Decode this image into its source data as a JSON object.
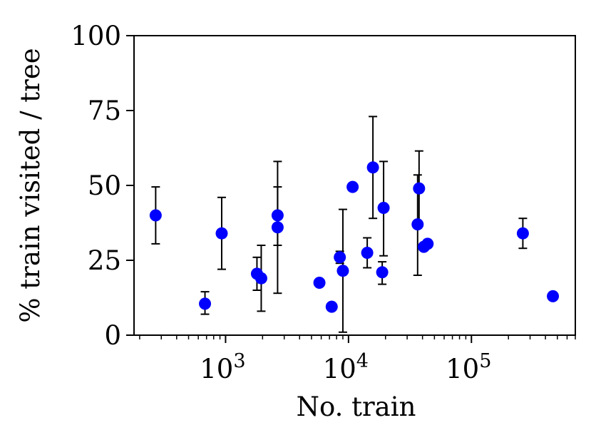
{
  "chart_data": {
    "type": "scatter",
    "title": "",
    "xlabel": "No. train",
    "ylabel": "% train visited / tree",
    "x_scale": "log",
    "xlim": [
      180,
      700000
    ],
    "ylim": [
      0,
      100
    ],
    "y_ticks": [
      0,
      25,
      50,
      75,
      100
    ],
    "y_tick_labels": [
      "0",
      "25",
      "50",
      "75",
      "100"
    ],
    "x_major_ticks": [
      1000,
      10000,
      100000
    ],
    "x_tick_labels": [
      {
        "base": "10",
        "exp": "3"
      },
      {
        "base": "10",
        "exp": "4"
      },
      {
        "base": "10",
        "exp": "5"
      }
    ],
    "marker_color": "#0000ff",
    "errorbar_color": "#000000",
    "points": [
      {
        "x": 270,
        "y": 40,
        "err_low": 30.5,
        "err_high": 49.5
      },
      {
        "x": 680,
        "y": 10.5,
        "err_low": 7,
        "err_high": 14.5
      },
      {
        "x": 930,
        "y": 34,
        "err_low": 22,
        "err_high": 46
      },
      {
        "x": 1800,
        "y": 20.5,
        "err_low": 15,
        "err_high": 26
      },
      {
        "x": 1950,
        "y": 19,
        "err_low": 8,
        "err_high": 30
      },
      {
        "x": 2650,
        "y": 40,
        "err_low": 30,
        "err_high": 49.5
      },
      {
        "x": 2650,
        "y": 36,
        "err_low": 14,
        "err_high": 58
      },
      {
        "x": 5800,
        "y": 17.5,
        "err_low": 16.5,
        "err_high": 18.5
      },
      {
        "x": 7300,
        "y": 9.5,
        "err_low": null,
        "err_high": null
      },
      {
        "x": 8500,
        "y": 26,
        "err_low": 24,
        "err_high": 28
      },
      {
        "x": 9000,
        "y": 21.5,
        "err_low": 1,
        "err_high": 42
      },
      {
        "x": 10800,
        "y": 49.5,
        "err_low": null,
        "err_high": null
      },
      {
        "x": 14200,
        "y": 27.5,
        "err_low": 22.5,
        "err_high": 32.5
      },
      {
        "x": 15800,
        "y": 56,
        "err_low": 39,
        "err_high": 73
      },
      {
        "x": 18800,
        "y": 21,
        "err_low": 17,
        "err_high": 24.5
      },
      {
        "x": 19300,
        "y": 42.5,
        "err_low": 26.5,
        "err_high": 58
      },
      {
        "x": 36500,
        "y": 37,
        "err_low": 20,
        "err_high": 53.5
      },
      {
        "x": 37500,
        "y": 49,
        "err_low": 36.5,
        "err_high": 61.5
      },
      {
        "x": 41000,
        "y": 29.5,
        "err_low": null,
        "err_high": null
      },
      {
        "x": 44000,
        "y": 30.5,
        "err_low": null,
        "err_high": null
      },
      {
        "x": 262000,
        "y": 34,
        "err_low": 29,
        "err_high": 39
      },
      {
        "x": 460000,
        "y": 13,
        "err_low": null,
        "err_high": null
      }
    ]
  }
}
